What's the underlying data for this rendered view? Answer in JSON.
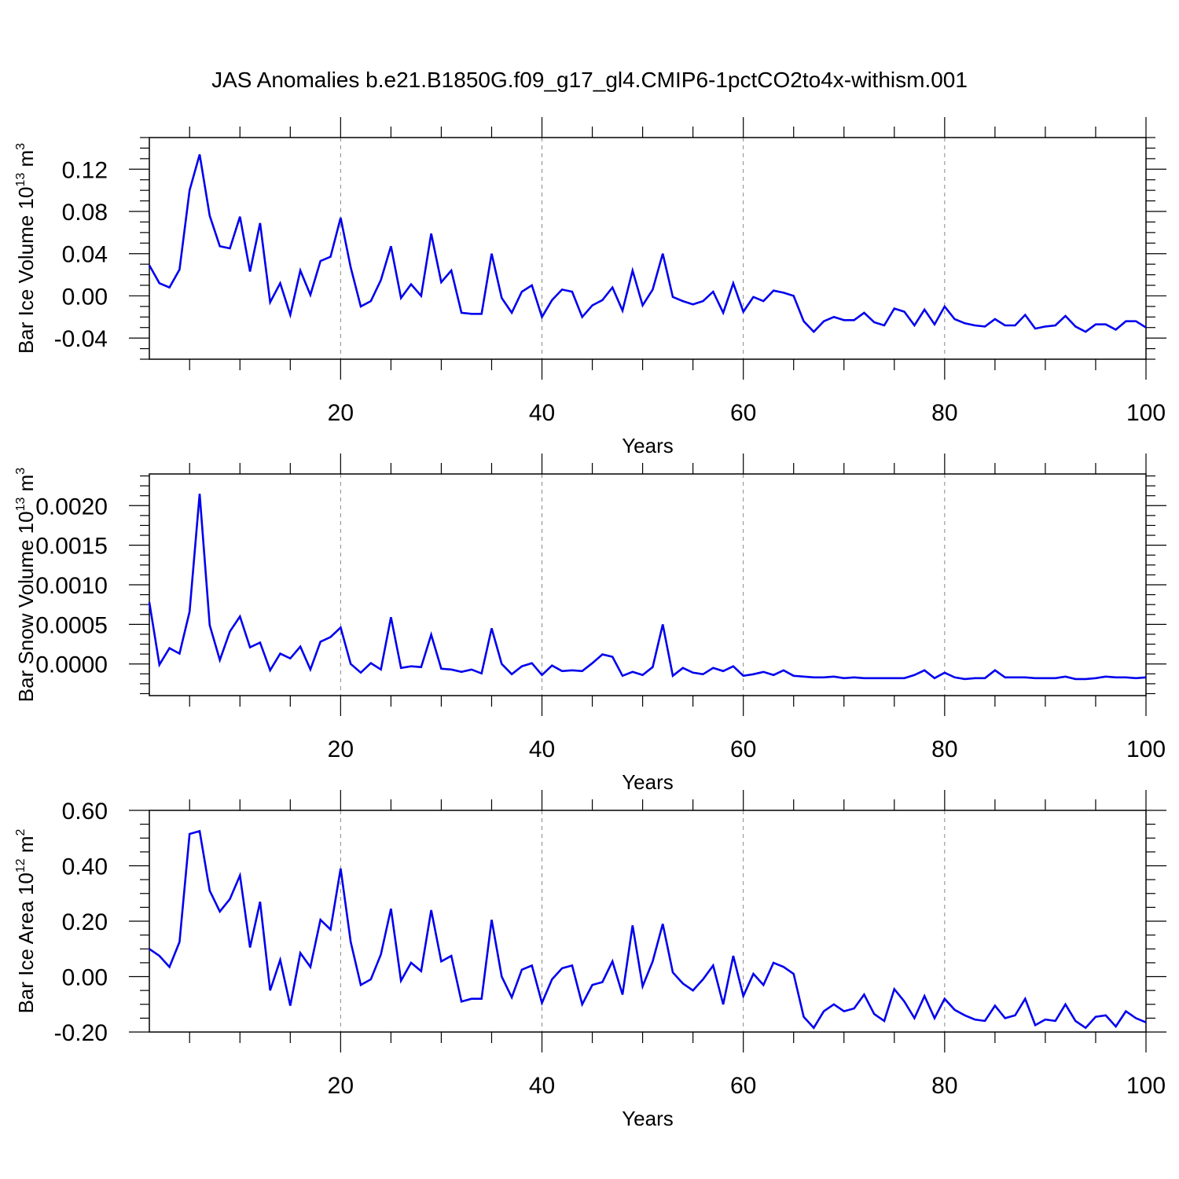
{
  "title": "JAS Anomalies b.e21.B1850G.f09_g17_gl4.CMIP6-1pctCO2to4x-withism.001",
  "line_color": "#0000ee",
  "chart_data": [
    {
      "type": "line",
      "name": "ice-volume",
      "ylabel_main": "Bar Ice Volume 10",
      "ylabel_exp": "13",
      "ylabel_unit": " m",
      "ylabel_unit_exp": "3",
      "xlabel": "Years",
      "xlim": [
        1,
        100
      ],
      "ylim": [
        -0.06,
        0.15
      ],
      "xticks": [
        20,
        40,
        60,
        80,
        100
      ],
      "yticks": [
        -0.04,
        0.0,
        0.04,
        0.08,
        0.12
      ],
      "ytick_labels": [
        "-0.04",
        "0.00",
        "0.04",
        "0.08",
        "0.12"
      ],
      "grid_x": true,
      "values": [
        0.029,
        0.012,
        0.008,
        0.025,
        0.1,
        0.134,
        0.076,
        0.047,
        0.045,
        0.075,
        0.023,
        0.069,
        -0.006,
        0.012,
        -0.018,
        0.024,
        0.001,
        0.033,
        0.037,
        0.074,
        0.027,
        -0.01,
        -0.005,
        0.015,
        0.047,
        -0.002,
        0.011,
        0.0,
        0.059,
        0.013,
        0.024,
        -0.016,
        -0.017,
        -0.017,
        0.04,
        -0.002,
        -0.016,
        0.004,
        0.01,
        -0.02,
        -0.004,
        0.006,
        0.004,
        -0.02,
        -0.009,
        -0.004,
        0.008,
        -0.014,
        0.024,
        -0.009,
        0.006,
        0.04,
        -0.001,
        -0.005,
        -0.008,
        -0.005,
        0.004,
        -0.016,
        0.012,
        -0.015,
        -0.001,
        -0.005,
        0.005,
        0.003,
        0.0,
        -0.024,
        -0.034,
        -0.024,
        -0.02,
        -0.023,
        -0.023,
        -0.016,
        -0.025,
        -0.028,
        -0.012,
        -0.015,
        -0.028,
        -0.013,
        -0.027,
        -0.01,
        -0.022,
        -0.026,
        -0.028,
        -0.029,
        -0.022,
        -0.028,
        -0.028,
        -0.018,
        -0.031,
        -0.029,
        -0.028,
        -0.019,
        -0.029,
        -0.034,
        -0.027,
        -0.027,
        -0.032,
        -0.024,
        -0.024,
        -0.03
      ]
    },
    {
      "type": "line",
      "name": "snow-volume",
      "ylabel_main": "Bar Snow Volume 10",
      "ylabel_exp": "13",
      "ylabel_unit": " m",
      "ylabel_unit_exp": "3",
      "xlabel": "Years",
      "xlim": [
        1,
        100
      ],
      "ylim": [
        -0.0004,
        0.0024
      ],
      "xticks": [
        20,
        40,
        60,
        80,
        100
      ],
      "yticks": [
        0.0,
        0.0005,
        0.001,
        0.0015,
        0.002
      ],
      "ytick_labels": [
        "0.0000",
        "0.0005",
        "0.0010",
        "0.0015",
        "0.0020"
      ],
      "grid_x": true,
      "values": [
        0.00078,
        -1e-05,
        0.0002,
        0.00013,
        0.00066,
        0.00215,
        0.00049,
        5e-05,
        0.00041,
        0.0006,
        0.00021,
        0.00027,
        -8e-05,
        0.00013,
        7e-05,
        0.00022,
        -7e-05,
        0.00028,
        0.00034,
        0.00046,
        0.0,
        -0.00011,
        1e-05,
        -7e-05,
        0.00059,
        -5e-05,
        -3e-05,
        -4e-05,
        0.00037,
        -6e-05,
        -7e-05,
        -0.0001,
        -7e-05,
        -0.00012,
        0.00045,
        0.0,
        -0.00013,
        -3e-05,
        1e-05,
        -0.00014,
        -2e-05,
        -9e-05,
        -8e-05,
        -9e-05,
        1e-05,
        0.00012,
        9e-05,
        -0.00015,
        -0.0001,
        -0.00014,
        -4e-05,
        0.0005,
        -0.00015,
        -5e-05,
        -0.00011,
        -0.00013,
        -5e-05,
        -9e-05,
        -3e-05,
        -0.00015,
        -0.00013,
        -0.0001,
        -0.00014,
        -8e-05,
        -0.00015,
        -0.00016,
        -0.00017,
        -0.00017,
        -0.00016,
        -0.00018,
        -0.00017,
        -0.00018,
        -0.00018,
        -0.00018,
        -0.00018,
        -0.00018,
        -0.00014,
        -8e-05,
        -0.00018,
        -0.00011,
        -0.00017,
        -0.00019,
        -0.00018,
        -0.00018,
        -8e-05,
        -0.00017,
        -0.00017,
        -0.00017,
        -0.00018,
        -0.00018,
        -0.00018,
        -0.00016,
        -0.00019,
        -0.00019,
        -0.00018,
        -0.00016,
        -0.00017,
        -0.00017,
        -0.00018,
        -0.00017
      ]
    },
    {
      "type": "line",
      "name": "ice-area",
      "ylabel_main": "Bar Ice Area 10",
      "ylabel_exp": "12",
      "ylabel_unit": " m",
      "ylabel_unit_exp": "2",
      "xlabel": "Years",
      "xlim": [
        1,
        100
      ],
      "ylim": [
        -0.2,
        0.6
      ],
      "xticks": [
        20,
        40,
        60,
        80,
        100
      ],
      "yticks": [
        -0.2,
        0.0,
        0.2,
        0.4,
        0.6
      ],
      "ytick_labels": [
        "-0.20",
        "0.00",
        "0.20",
        "0.40",
        "0.60"
      ],
      "grid_x": true,
      "values": [
        0.1,
        0.075,
        0.035,
        0.125,
        0.515,
        0.525,
        0.31,
        0.235,
        0.28,
        0.365,
        0.105,
        0.27,
        -0.05,
        0.06,
        -0.105,
        0.085,
        0.035,
        0.205,
        0.17,
        0.39,
        0.125,
        -0.03,
        -0.01,
        0.08,
        0.245,
        -0.015,
        0.05,
        0.02,
        0.24,
        0.055,
        0.075,
        -0.09,
        -0.08,
        -0.08,
        0.205,
        0.0,
        -0.075,
        0.025,
        0.04,
        -0.095,
        -0.01,
        0.03,
        0.04,
        -0.1,
        -0.03,
        -0.02,
        0.055,
        -0.065,
        0.185,
        -0.035,
        0.055,
        0.19,
        0.015,
        -0.025,
        -0.05,
        -0.01,
        0.04,
        -0.1,
        0.075,
        -0.07,
        0.01,
        -0.03,
        0.05,
        0.035,
        0.01,
        -0.145,
        -0.185,
        -0.125,
        -0.1,
        -0.125,
        -0.115,
        -0.065,
        -0.135,
        -0.16,
        -0.045,
        -0.09,
        -0.15,
        -0.07,
        -0.15,
        -0.08,
        -0.12,
        -0.14,
        -0.155,
        -0.16,
        -0.105,
        -0.15,
        -0.14,
        -0.08,
        -0.175,
        -0.155,
        -0.16,
        -0.1,
        -0.16,
        -0.185,
        -0.145,
        -0.14,
        -0.18,
        -0.125,
        -0.15,
        -0.165
      ]
    }
  ]
}
